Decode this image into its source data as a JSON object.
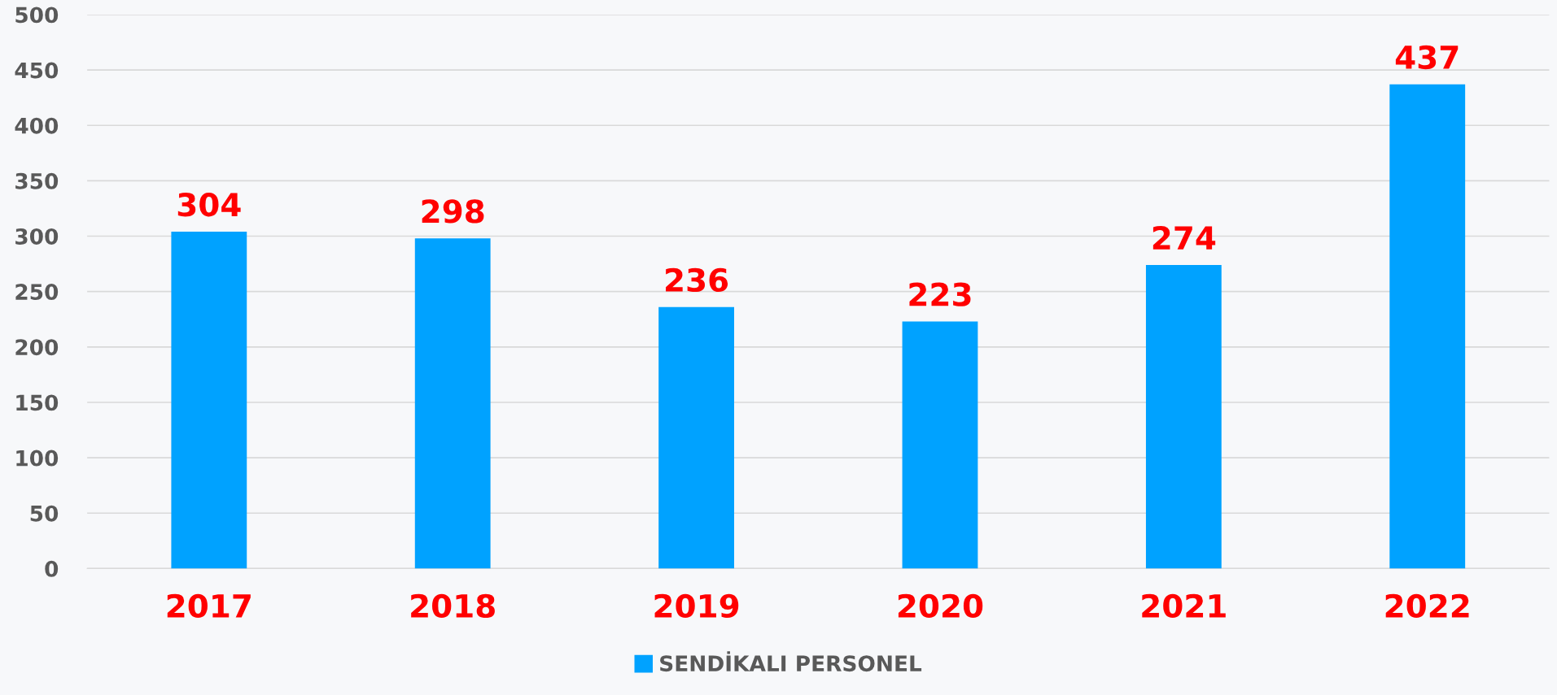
{
  "chart_data": {
    "type": "bar",
    "categories": [
      "2017",
      "2018",
      "2019",
      "2020",
      "2021",
      "2022"
    ],
    "series": [
      {
        "name": "SENDİKALI PERSONEL",
        "color": "#00a2ff",
        "values": [
          304,
          298,
          236,
          223,
          274,
          437
        ]
      }
    ],
    "ylim": [
      0,
      500
    ],
    "yticks": [
      0,
      50,
      100,
      150,
      200,
      250,
      300,
      350,
      400,
      450,
      500
    ],
    "grid": "y",
    "legend": "bottom",
    "data_labels": true
  }
}
